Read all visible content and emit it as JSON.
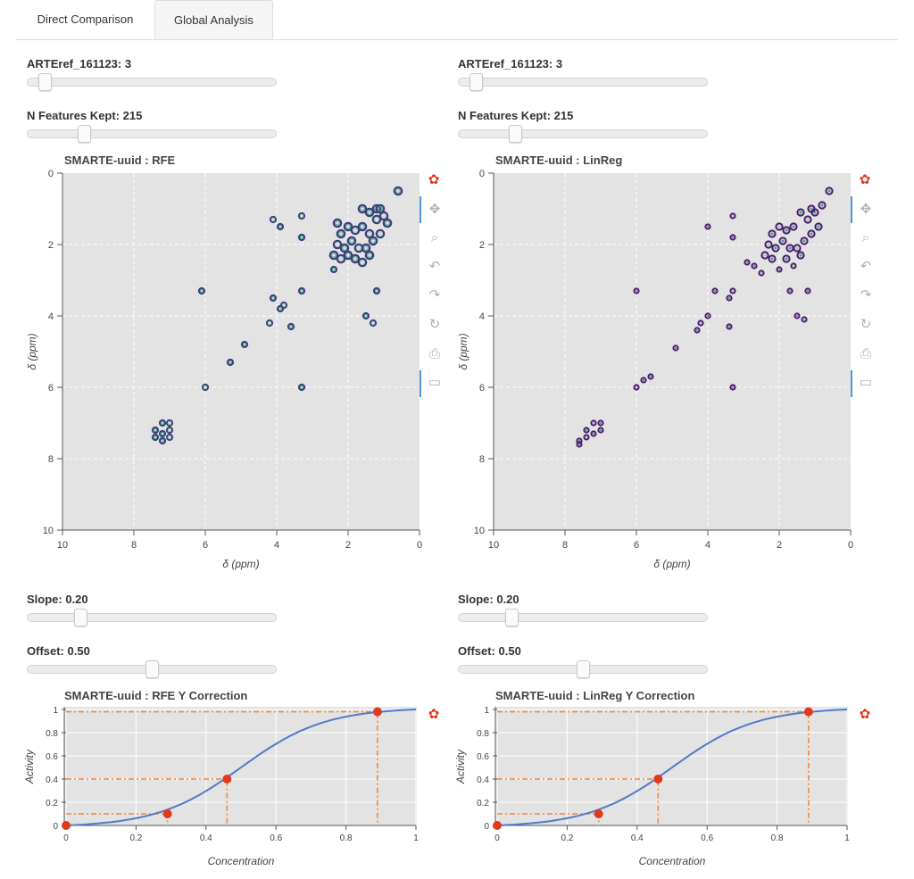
{
  "tabs": [
    {
      "label": "Direct Comparison"
    },
    {
      "label": "Global Analysis"
    }
  ],
  "left": {
    "artref_label": "ARTEref_161123: 3",
    "artref_value": 3,
    "artref_range": [
      0,
      60
    ],
    "features_label": "N Features Kept: 215",
    "features_value": 215,
    "features_range": [
      0,
      1000
    ],
    "nmr_title": "SMARTE-uuid : RFE",
    "nmr_xlabel": "δ (ppm)",
    "nmr_ylabel": "δ (ppm)",
    "slope_label": "Slope: 0.20",
    "slope_value": 0.2,
    "slope_range": [
      0,
      1
    ],
    "offset_label": "Offset: 0.50",
    "offset_value": 0.5,
    "offset_range": [
      0,
      1
    ],
    "curve_title": "SMARTE-uuid : RFE Y Correction",
    "curve_xlabel": "Concentration",
    "curve_ylabel": "Activity"
  },
  "right": {
    "artref_label": "ARTEref_161123: 3",
    "artref_value": 3,
    "artref_range": [
      0,
      60
    ],
    "features_label": "N Features Kept: 215",
    "features_value": 215,
    "features_range": [
      0,
      1000
    ],
    "nmr_title": "SMARTE-uuid : LinReg",
    "nmr_xlabel": "δ (ppm)",
    "nmr_ylabel": "δ (ppm)",
    "slope_label": "Slope: 0.20",
    "slope_value": 0.2,
    "slope_range": [
      0,
      1
    ],
    "offset_label": "Offset: 0.50",
    "offset_value": 0.5,
    "offset_range": [
      0,
      1
    ],
    "curve_title": "SMARTE-uuid : LinReg Y Correction",
    "curve_xlabel": "Concentration",
    "curve_ylabel": "Activity"
  },
  "toolbar_icons": [
    "bokeh-logo-icon",
    "pan-icon",
    "box-zoom-icon",
    "undo-icon",
    "redo-icon",
    "reset-icon",
    "save-icon",
    "hover-icon"
  ],
  "colors": {
    "plot_bg": "#e3e3e3",
    "contour_dark": "#3b3d7a",
    "contour_teal": "#4fa58c",
    "contour_light": "#9fd0b8",
    "contour_purple": "#4b1a6e",
    "curve_blue": "#4f7bc8",
    "marker_red": "#e0391c",
    "guide_orange": "#f08a3c",
    "active_blue": "#4f97e0"
  },
  "chart_data": [
    {
      "type": "scatter",
      "name": "rfe-nmr",
      "title": "SMARTE-uuid : RFE",
      "xlabel": "δ (ppm)",
      "ylabel": "δ (ppm)",
      "xlim": [
        10,
        0
      ],
      "ylim": [
        0,
        10
      ],
      "xticks": [
        10,
        8,
        6,
        4,
        2,
        0
      ],
      "yticks": [
        0,
        2,
        4,
        6,
        8,
        10
      ],
      "peaks": [
        [
          1.2,
          1.3
        ],
        [
          1.4,
          1.1
        ],
        [
          1.6,
          1.5
        ],
        [
          1.8,
          1.6
        ],
        [
          2.0,
          1.5
        ],
        [
          2.2,
          1.7
        ],
        [
          1.1,
          1.7
        ],
        [
          1.3,
          1.9
        ],
        [
          1.5,
          2.1
        ],
        [
          1.7,
          2.1
        ],
        [
          1.9,
          1.9
        ],
        [
          2.1,
          2.1
        ],
        [
          2.3,
          2.0
        ],
        [
          1.4,
          2.3
        ],
        [
          1.8,
          2.4
        ],
        [
          2.2,
          2.4
        ],
        [
          2.4,
          2.3
        ],
        [
          1.2,
          1.0
        ],
        [
          1.0,
          1.2
        ],
        [
          1.6,
          1.0
        ],
        [
          0.6,
          0.5
        ],
        [
          3.3,
          1.2
        ],
        [
          3.3,
          1.8
        ],
        [
          3.9,
          1.5
        ],
        [
          4.1,
          1.3
        ],
        [
          1.2,
          3.3
        ],
        [
          3.3,
          3.3
        ],
        [
          3.8,
          3.7
        ],
        [
          4.1,
          3.5
        ],
        [
          3.9,
          3.8
        ],
        [
          4.2,
          4.2
        ],
        [
          3.6,
          4.3
        ],
        [
          1.5,
          4.0
        ],
        [
          1.3,
          4.2
        ],
        [
          4.9,
          4.8
        ],
        [
          5.3,
          5.3
        ],
        [
          6.0,
          6.0
        ],
        [
          3.3,
          6.0
        ],
        [
          6.1,
          3.3
        ],
        [
          7.0,
          7.0
        ],
        [
          7.2,
          7.0
        ],
        [
          7.4,
          7.2
        ],
        [
          7.0,
          7.2
        ],
        [
          7.2,
          7.3
        ],
        [
          7.4,
          7.4
        ],
        [
          7.0,
          7.4
        ],
        [
          7.2,
          7.5
        ],
        [
          2.4,
          2.7
        ],
        [
          1.6,
          2.5
        ],
        [
          0.9,
          1.4
        ],
        [
          1.1,
          1.0
        ],
        [
          1.4,
          1.7
        ],
        [
          2.0,
          2.3
        ],
        [
          2.3,
          1.4
        ]
      ]
    },
    {
      "type": "scatter",
      "name": "linreg-nmr",
      "title": "SMARTE-uuid : LinReg",
      "xlabel": "δ (ppm)",
      "ylabel": "δ (ppm)",
      "xlim": [
        10,
        0
      ],
      "ylim": [
        0,
        10
      ],
      "xticks": [
        10,
        8,
        6,
        4,
        2,
        0
      ],
      "yticks": [
        0,
        2,
        4,
        6,
        8,
        10
      ],
      "peaks": [
        [
          1.2,
          1.3
        ],
        [
          1.4,
          1.1
        ],
        [
          1.6,
          1.5
        ],
        [
          1.8,
          1.6
        ],
        [
          2.0,
          1.5
        ],
        [
          2.2,
          1.7
        ],
        [
          1.1,
          1.7
        ],
        [
          1.3,
          1.9
        ],
        [
          1.5,
          2.1
        ],
        [
          1.7,
          2.1
        ],
        [
          1.9,
          1.9
        ],
        [
          2.1,
          2.1
        ],
        [
          2.3,
          2.0
        ],
        [
          1.4,
          2.3
        ],
        [
          1.8,
          2.4
        ],
        [
          2.2,
          2.4
        ],
        [
          2.4,
          2.3
        ],
        [
          1.0,
          1.1
        ],
        [
          0.6,
          0.5
        ],
        [
          0.8,
          0.9
        ],
        [
          3.3,
          1.2
        ],
        [
          3.3,
          1.8
        ],
        [
          4.0,
          1.5
        ],
        [
          2.7,
          2.6
        ],
        [
          2.5,
          2.8
        ],
        [
          2.9,
          2.5
        ],
        [
          1.2,
          3.3
        ],
        [
          1.7,
          3.3
        ],
        [
          3.3,
          3.3
        ],
        [
          3.4,
          3.5
        ],
        [
          3.8,
          3.3
        ],
        [
          4.0,
          4.0
        ],
        [
          4.2,
          4.2
        ],
        [
          4.3,
          4.4
        ],
        [
          3.4,
          4.3
        ],
        [
          1.5,
          4.0
        ],
        [
          1.3,
          4.1
        ],
        [
          4.9,
          4.9
        ],
        [
          5.6,
          5.7
        ],
        [
          5.8,
          5.8
        ],
        [
          6.0,
          6.0
        ],
        [
          6.0,
          3.3
        ],
        [
          3.3,
          6.0
        ],
        [
          7.0,
          7.0
        ],
        [
          7.2,
          7.0
        ],
        [
          7.0,
          7.2
        ],
        [
          7.2,
          7.3
        ],
        [
          7.4,
          7.2
        ],
        [
          7.4,
          7.4
        ],
        [
          7.6,
          7.5
        ],
        [
          7.6,
          7.6
        ],
        [
          2.0,
          2.7
        ],
        [
          1.6,
          2.6
        ],
        [
          0.9,
          1.5
        ],
        [
          1.1,
          1.0
        ]
      ]
    },
    {
      "type": "line",
      "name": "rfe-correction",
      "title": "SMARTE-uuid : RFE Y Correction",
      "xlabel": "Concentration",
      "ylabel": "Activity",
      "xlim": [
        0,
        1
      ],
      "ylim": [
        0,
        1
      ],
      "xticks": [
        0,
        0.2,
        0.4,
        0.6,
        0.8,
        1
      ],
      "yticks": [
        0,
        0.2,
        0.4,
        0.6,
        0.8,
        1
      ],
      "slope": 0.2,
      "offset": 0.5,
      "markers": [
        [
          0,
          0
        ],
        [
          0.29,
          0.1
        ],
        [
          0.46,
          0.4
        ],
        [
          0.89,
          0.98
        ]
      ]
    },
    {
      "type": "line",
      "name": "linreg-correction",
      "title": "SMARTE-uuid : LinReg Y Correction",
      "xlabel": "Concentration",
      "ylabel": "Activity",
      "xlim": [
        0,
        1
      ],
      "ylim": [
        0,
        1
      ],
      "xticks": [
        0,
        0.2,
        0.4,
        0.6,
        0.8,
        1
      ],
      "yticks": [
        0,
        0.2,
        0.4,
        0.6,
        0.8,
        1
      ],
      "slope": 0.2,
      "offset": 0.5,
      "markers": [
        [
          0,
          0
        ],
        [
          0.29,
          0.1
        ],
        [
          0.46,
          0.4
        ],
        [
          0.89,
          0.98
        ]
      ]
    }
  ]
}
